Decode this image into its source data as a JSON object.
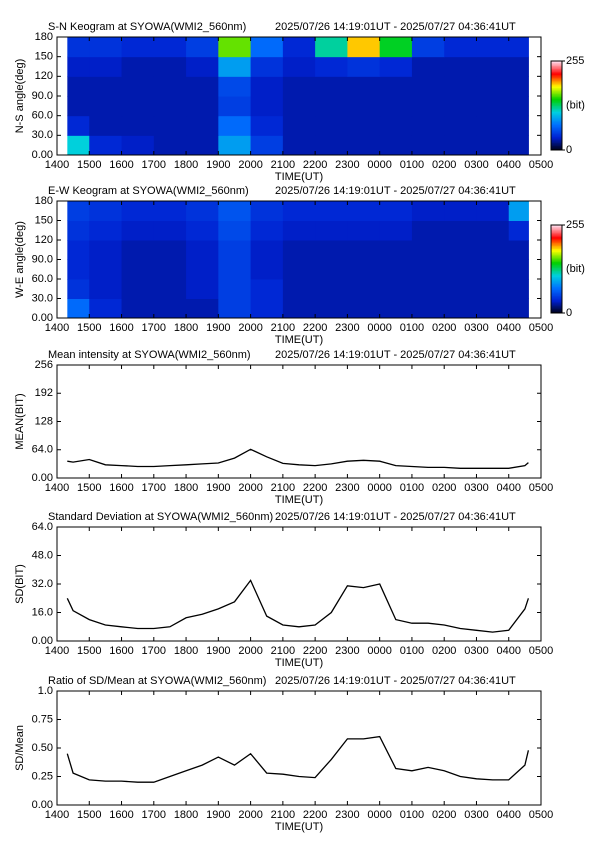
{
  "chart_data": [
    {
      "type": "heatmap",
      "title": "S-N Keogram at SYOWA(WMI2_560nm)",
      "subtitle": "2025/07/26 14:19:01UT - 2025/07/27 04:36:41UT",
      "x_label": "TIME(UT)",
      "y_label": "N-S angle(deg)",
      "x": [
        14.32,
        15,
        16,
        17,
        18,
        19,
        20,
        21,
        22,
        23,
        24,
        25,
        26,
        27,
        28,
        28.61
      ],
      "ybins": [
        0,
        30,
        60,
        90,
        120,
        150,
        180
      ],
      "values": [
        [
          110,
          40,
          35,
          30,
          30,
          90,
          50,
          30,
          30,
          30,
          30,
          30,
          30,
          30,
          30
        ],
        [
          40,
          30,
          30,
          30,
          30,
          70,
          40,
          30,
          30,
          30,
          30,
          30,
          30,
          30,
          30
        ],
        [
          30,
          30,
          30,
          30,
          30,
          50,
          35,
          30,
          30,
          30,
          30,
          30,
          30,
          30,
          30
        ],
        [
          30,
          30,
          30,
          30,
          30,
          55,
          35,
          30,
          30,
          30,
          30,
          30,
          30,
          30,
          30
        ],
        [
          35,
          35,
          30,
          30,
          35,
          90,
          45,
          35,
          40,
          45,
          40,
          30,
          30,
          30,
          30
        ],
        [
          45,
          45,
          40,
          40,
          50,
          160,
          70,
          40,
          120,
          190,
          140,
          50,
          40,
          40,
          40
        ]
      ],
      "xlim": [
        14,
        29
      ],
      "xticks": [
        {
          "value": 14,
          "label": "1400"
        },
        {
          "value": 15,
          "label": "1500"
        },
        {
          "value": 16,
          "label": "1600"
        },
        {
          "value": 17,
          "label": "1700"
        },
        {
          "value": 18,
          "label": "1800"
        },
        {
          "value": 19,
          "label": "1900"
        },
        {
          "value": 20,
          "label": "2000"
        },
        {
          "value": 21,
          "label": "2100"
        },
        {
          "value": 22,
          "label": "2200"
        },
        {
          "value": 23,
          "label": "2300"
        },
        {
          "value": 24,
          "label": "0000"
        },
        {
          "value": 25,
          "label": "0100"
        },
        {
          "value": 26,
          "label": "0200"
        },
        {
          "value": 27,
          "label": "0300"
        },
        {
          "value": 28,
          "label": "0400"
        },
        {
          "value": 29,
          "label": "0500"
        }
      ],
      "ylim": [
        0,
        180
      ],
      "yticks": [
        {
          "value": 0,
          "label": "0.00"
        },
        {
          "value": 30,
          "label": "30.0"
        },
        {
          "value": 60,
          "label": "60.0"
        },
        {
          "value": 90,
          "label": "90.0"
        },
        120,
        150,
        180
      ],
      "clim": [
        0,
        255
      ],
      "colorbar_ticks": [
        0,
        255
      ],
      "colorbar_label": "(bit)",
      "colormap": [
        "#000010",
        "#0020d0",
        "#0070ff",
        "#00d0e0",
        "#00d000",
        "#ffff00",
        "#ff0000",
        "#ffe0f0"
      ]
    },
    {
      "type": "heatmap",
      "title": "E-W Keogram at SYOWA(WMI2_560nm)",
      "subtitle": "2025/07/26 14:19:01UT - 2025/07/27 04:36:41UT",
      "x_label": "TIME(UT)",
      "y_label": "W-E angle(deg)",
      "x": [
        14.32,
        15,
        16,
        17,
        18,
        19,
        20,
        21,
        22,
        23,
        24,
        25,
        26,
        27,
        28,
        28.61
      ],
      "ybins": [
        0,
        30,
        60,
        90,
        120,
        150,
        180
      ],
      "values": [
        [
          70,
          40,
          30,
          30,
          30,
          50,
          40,
          30,
          30,
          30,
          30,
          30,
          30,
          30,
          30
        ],
        [
          45,
          35,
          30,
          30,
          35,
          50,
          40,
          30,
          30,
          30,
          30,
          30,
          30,
          30,
          30
        ],
        [
          40,
          35,
          30,
          30,
          35,
          50,
          35,
          30,
          30,
          30,
          30,
          30,
          30,
          30,
          30
        ],
        [
          40,
          35,
          30,
          30,
          35,
          50,
          35,
          30,
          30,
          30,
          30,
          30,
          30,
          30,
          30
        ],
        [
          45,
          40,
          35,
          35,
          40,
          55,
          40,
          35,
          35,
          35,
          35,
          30,
          30,
          30,
          40
        ],
        [
          50,
          45,
          40,
          40,
          45,
          60,
          45,
          40,
          40,
          40,
          40,
          35,
          35,
          35,
          90
        ]
      ],
      "xlim": [
        14,
        29
      ],
      "xticks": [
        {
          "value": 14,
          "label": "1400"
        },
        {
          "value": 15,
          "label": "1500"
        },
        {
          "value": 16,
          "label": "1600"
        },
        {
          "value": 17,
          "label": "1700"
        },
        {
          "value": 18,
          "label": "1800"
        },
        {
          "value": 19,
          "label": "1900"
        },
        {
          "value": 20,
          "label": "2000"
        },
        {
          "value": 21,
          "label": "2100"
        },
        {
          "value": 22,
          "label": "2200"
        },
        {
          "value": 23,
          "label": "2300"
        },
        {
          "value": 24,
          "label": "0000"
        },
        {
          "value": 25,
          "label": "0100"
        },
        {
          "value": 26,
          "label": "0200"
        },
        {
          "value": 27,
          "label": "0300"
        },
        {
          "value": 28,
          "label": "0400"
        },
        {
          "value": 29,
          "label": "0500"
        }
      ],
      "ylim": [
        0,
        180
      ],
      "yticks": [
        {
          "value": 0,
          "label": "0.00"
        },
        {
          "value": 30,
          "label": "30.0"
        },
        {
          "value": 60,
          "label": "60.0"
        },
        {
          "value": 90,
          "label": "90.0"
        },
        120,
        150,
        180
      ],
      "clim": [
        0,
        255
      ],
      "colorbar_ticks": [
        0,
        255
      ],
      "colorbar_label": "(bit)",
      "colormap": [
        "#000010",
        "#0020d0",
        "#0070ff",
        "#00d0e0",
        "#00d000",
        "#ffff00",
        "#ff0000",
        "#ffe0f0"
      ]
    },
    {
      "type": "line",
      "title": "Mean intensity at SYOWA(WMI2_560nm)",
      "subtitle": "2025/07/26 14:19:01UT - 2025/07/27 04:36:41UT",
      "x_label": "TIME(UT)",
      "y_label": "MEAN(BIT)",
      "color": "#000000",
      "x": [
        14.32,
        14.5,
        15,
        15.5,
        16,
        16.5,
        17,
        17.5,
        18,
        18.5,
        19,
        19.5,
        20,
        20.5,
        21,
        21.5,
        22,
        22.5,
        23,
        23.5,
        24,
        24.5,
        25,
        25.5,
        26,
        26.5,
        27,
        27.5,
        28,
        28.5,
        28.61
      ],
      "values": [
        38,
        36,
        42,
        30,
        28,
        26,
        26,
        28,
        30,
        32,
        34,
        45,
        65,
        48,
        33,
        30,
        28,
        32,
        38,
        40,
        38,
        28,
        26,
        24,
        24,
        22,
        22,
        22,
        22,
        28,
        35
      ],
      "xlim": [
        14,
        29
      ],
      "xticks": [
        {
          "value": 14,
          "label": "1400"
        },
        {
          "value": 15,
          "label": "1500"
        },
        {
          "value": 16,
          "label": "1600"
        },
        {
          "value": 17,
          "label": "1700"
        },
        {
          "value": 18,
          "label": "1800"
        },
        {
          "value": 19,
          "label": "1900"
        },
        {
          "value": 20,
          "label": "2000"
        },
        {
          "value": 21,
          "label": "2100"
        },
        {
          "value": 22,
          "label": "2200"
        },
        {
          "value": 23,
          "label": "2300"
        },
        {
          "value": 24,
          "label": "0000"
        },
        {
          "value": 25,
          "label": "0100"
        },
        {
          "value": 26,
          "label": "0200"
        },
        {
          "value": 27,
          "label": "0300"
        },
        {
          "value": 28,
          "label": "0400"
        },
        {
          "value": 29,
          "label": "0500"
        }
      ],
      "ylim": [
        0,
        256
      ],
      "yticks": [
        {
          "value": 0,
          "label": "0.00"
        },
        {
          "value": 64,
          "label": "64.0"
        },
        128,
        192,
        256
      ]
    },
    {
      "type": "line",
      "title": "Standard Deviation at SYOWA(WMI2_560nm)",
      "subtitle": "2025/07/26 14:19:01UT - 2025/07/27 04:36:41UT",
      "x_label": "TIME(UT)",
      "y_label": "SD(BIT)",
      "color": "#000000",
      "x": [
        14.32,
        14.5,
        15,
        15.5,
        16,
        16.5,
        17,
        17.5,
        18,
        18.5,
        19,
        19.5,
        20,
        20.5,
        21,
        21.5,
        22,
        22.5,
        23,
        23.5,
        24,
        24.5,
        25,
        25.5,
        26,
        26.5,
        27,
        27.5,
        28,
        28.5,
        28.61
      ],
      "values": [
        24,
        17,
        12,
        9,
        8,
        7,
        7,
        8,
        13,
        15,
        18,
        22,
        34,
        14,
        9,
        8,
        9,
        16,
        31,
        30,
        32,
        12,
        10,
        10,
        9,
        7,
        6,
        5,
        6,
        18,
        24
      ],
      "xlim": [
        14,
        29
      ],
      "xticks": [
        {
          "value": 14,
          "label": "1400"
        },
        {
          "value": 15,
          "label": "1500"
        },
        {
          "value": 16,
          "label": "1600"
        },
        {
          "value": 17,
          "label": "1700"
        },
        {
          "value": 18,
          "label": "1800"
        },
        {
          "value": 19,
          "label": "1900"
        },
        {
          "value": 20,
          "label": "2000"
        },
        {
          "value": 21,
          "label": "2100"
        },
        {
          "value": 22,
          "label": "2200"
        },
        {
          "value": 23,
          "label": "2300"
        },
        {
          "value": 24,
          "label": "0000"
        },
        {
          "value": 25,
          "label": "0100"
        },
        {
          "value": 26,
          "label": "0200"
        },
        {
          "value": 27,
          "label": "0300"
        },
        {
          "value": 28,
          "label": "0400"
        },
        {
          "value": 29,
          "label": "0500"
        }
      ],
      "ylim": [
        0,
        64
      ],
      "yticks": [
        {
          "value": 0,
          "label": "0.00"
        },
        {
          "value": 16,
          "label": "16.0"
        },
        {
          "value": 32,
          "label": "32.0"
        },
        {
          "value": 48,
          "label": "48.0"
        },
        {
          "value": 64,
          "label": "64.0"
        }
      ]
    },
    {
      "type": "line",
      "title": "Ratio of SD/Mean at SYOWA(WMI2_560nm)",
      "subtitle": "2025/07/26 14:19:01UT - 2025/07/27 04:36:41UT",
      "x_label": "TIME(UT)",
      "y_label": "SD/Mean",
      "color": "#000000",
      "x": [
        14.32,
        14.5,
        15,
        15.5,
        16,
        16.5,
        17,
        17.5,
        18,
        18.5,
        19,
        19.5,
        20,
        20.5,
        21,
        21.5,
        22,
        22.5,
        23,
        23.5,
        24,
        24.5,
        25,
        25.5,
        26,
        26.5,
        27,
        27.5,
        28,
        28.5,
        28.61
      ],
      "values": [
        0.45,
        0.28,
        0.22,
        0.21,
        0.21,
        0.2,
        0.2,
        0.25,
        0.3,
        0.35,
        0.42,
        0.35,
        0.45,
        0.28,
        0.27,
        0.25,
        0.24,
        0.4,
        0.58,
        0.58,
        0.6,
        0.32,
        0.3,
        0.33,
        0.3,
        0.25,
        0.23,
        0.22,
        0.22,
        0.35,
        0.48
      ],
      "xlim": [
        14,
        29
      ],
      "xticks": [
        {
          "value": 14,
          "label": "1400"
        },
        {
          "value": 15,
          "label": "1500"
        },
        {
          "value": 16,
          "label": "1600"
        },
        {
          "value": 17,
          "label": "1700"
        },
        {
          "value": 18,
          "label": "1800"
        },
        {
          "value": 19,
          "label": "1900"
        },
        {
          "value": 20,
          "label": "2000"
        },
        {
          "value": 21,
          "label": "2100"
        },
        {
          "value": 22,
          "label": "2200"
        },
        {
          "value": 23,
          "label": "2300"
        },
        {
          "value": 24,
          "label": "0000"
        },
        {
          "value": 25,
          "label": "0100"
        },
        {
          "value": 26,
          "label": "0200"
        },
        {
          "value": 27,
          "label": "0300"
        },
        {
          "value": 28,
          "label": "0400"
        },
        {
          "value": 29,
          "label": "0500"
        }
      ],
      "ylim": [
        0,
        1
      ],
      "yticks": [
        {
          "value": 0,
          "label": "0.00"
        },
        0.25,
        {
          "value": 0.5,
          "label": "0.50"
        },
        0.75,
        {
          "value": 1,
          "label": "1.0"
        }
      ]
    }
  ]
}
